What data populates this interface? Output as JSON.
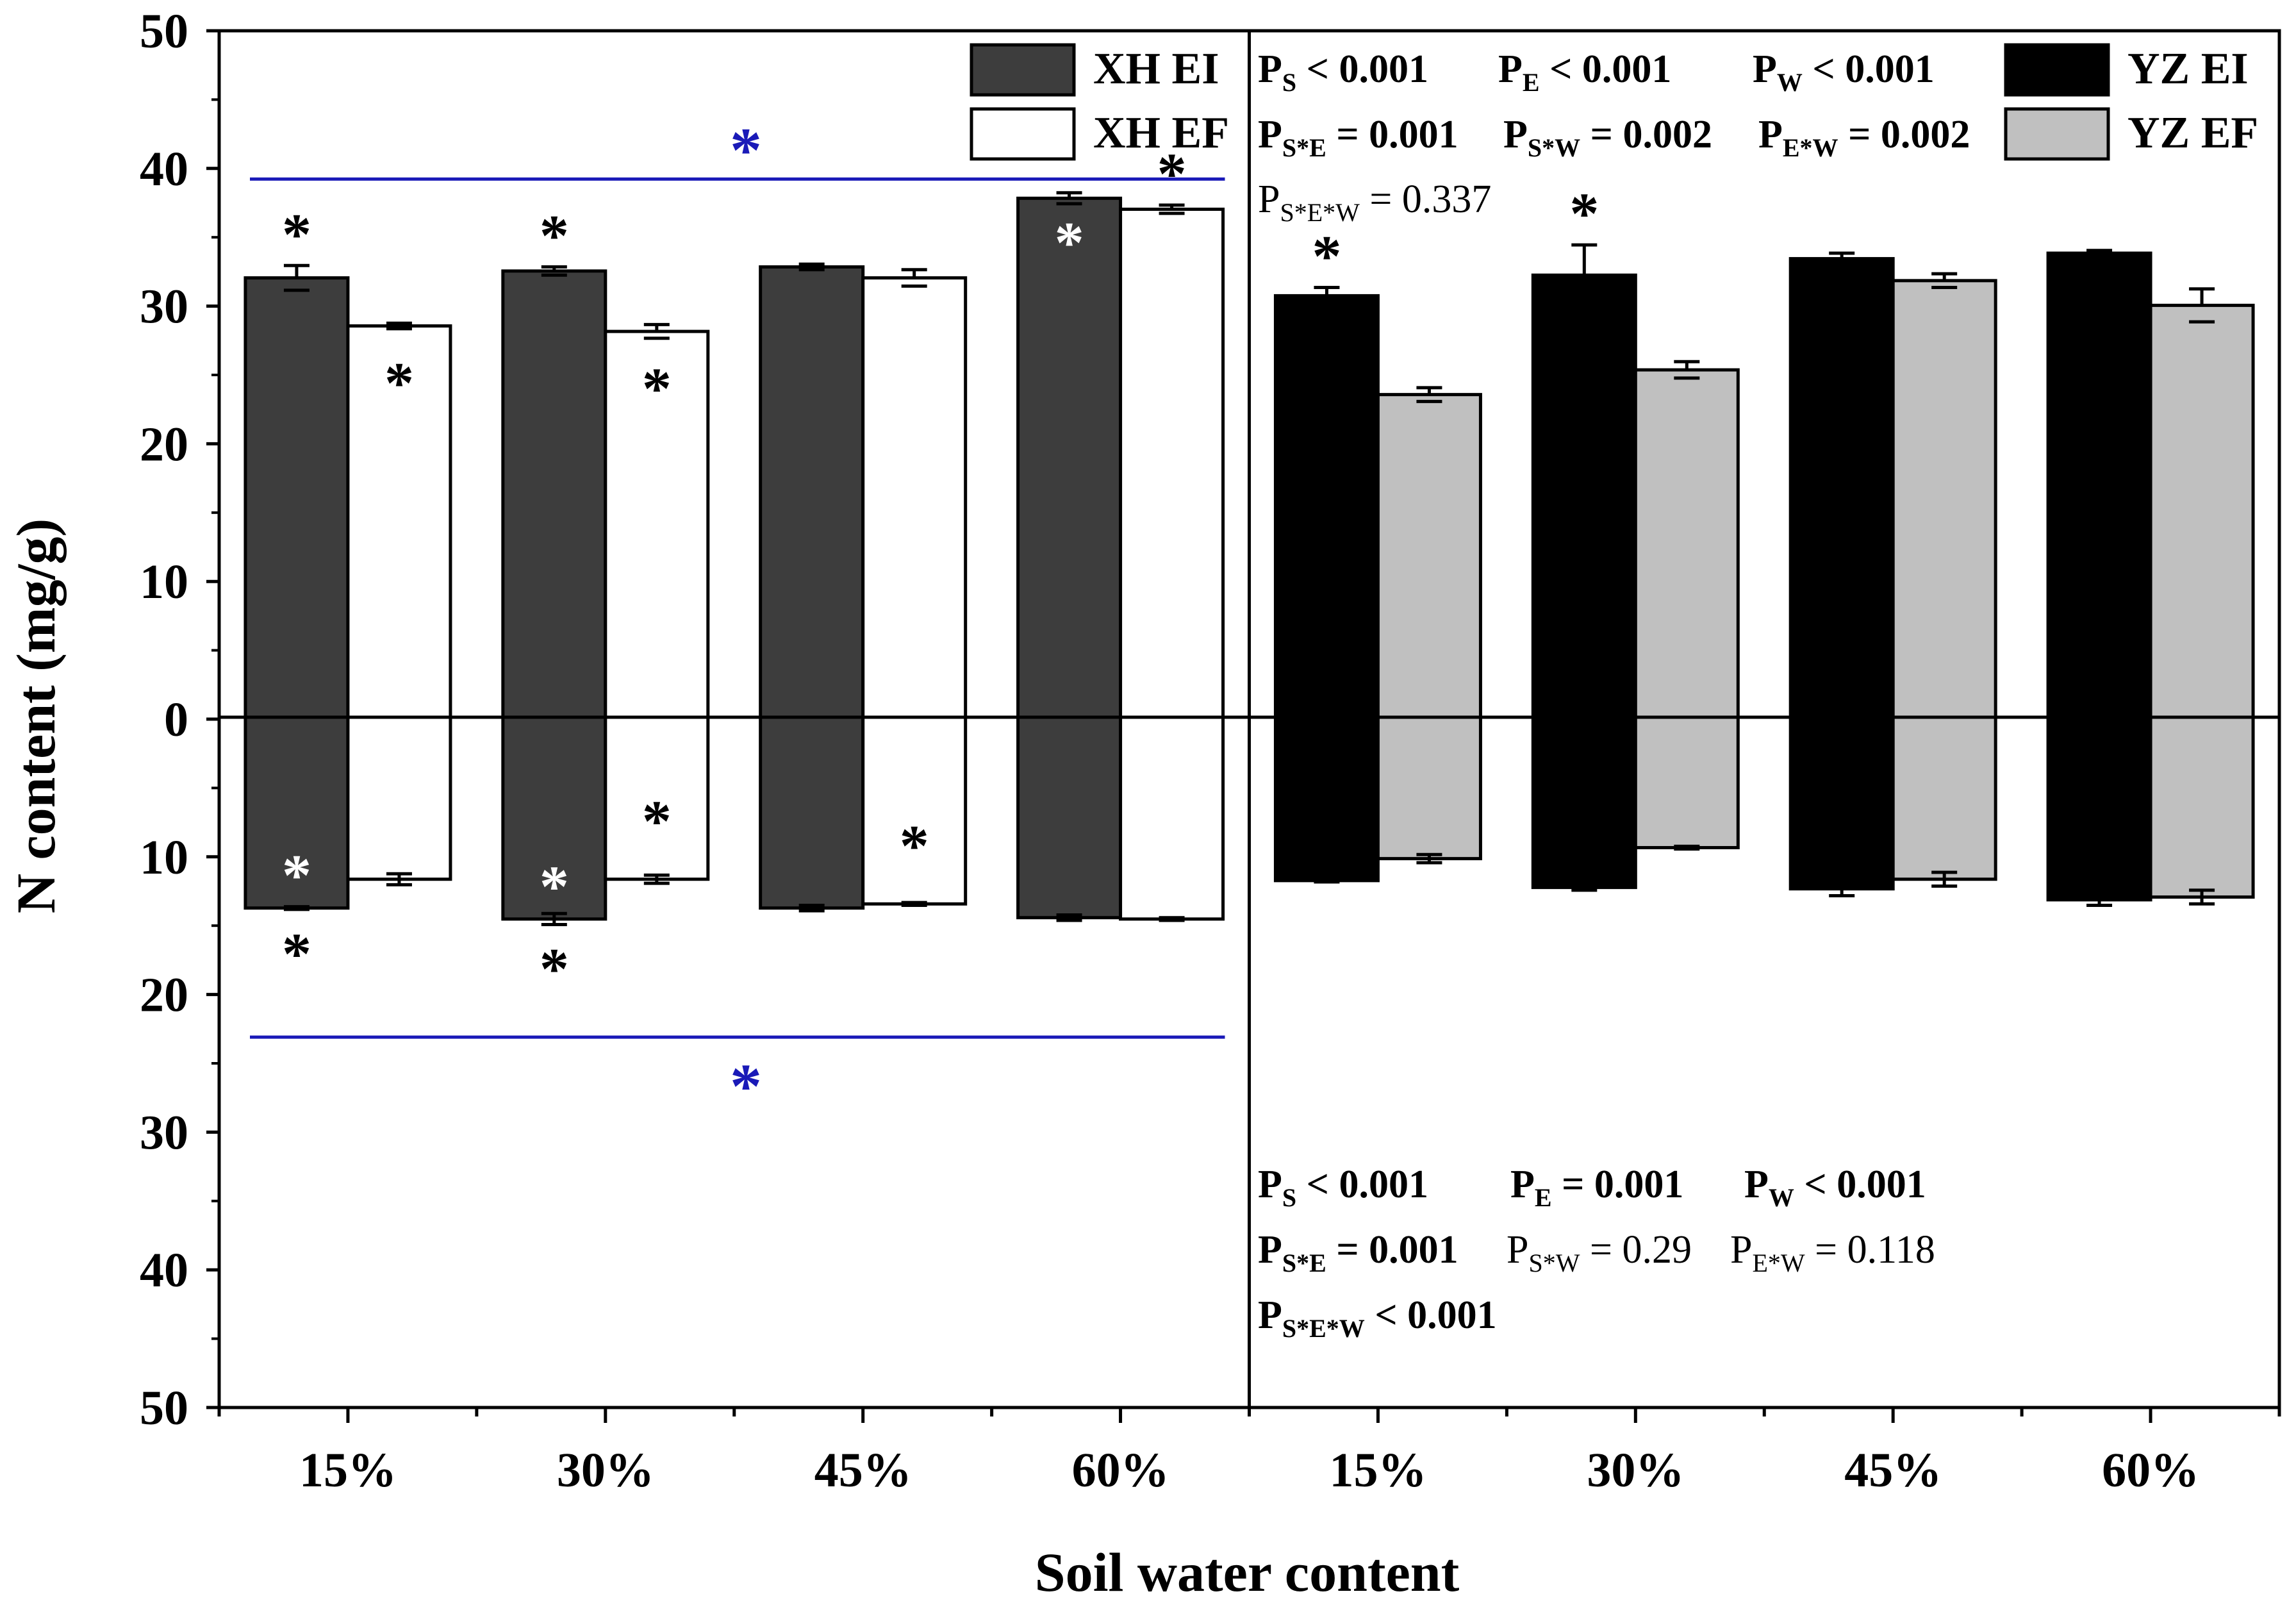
{
  "chart_data": {
    "type": "bar",
    "xlabel": "Soil water content",
    "ylabel": "N content (mg/g)",
    "ylim_top": [
      0,
      50
    ],
    "ylim_bottom": [
      0,
      50
    ],
    "yticks": [
      "50",
      "40",
      "30",
      "20",
      "10",
      "0",
      "10",
      "20",
      "30",
      "40",
      "50"
    ],
    "panels": [
      {
        "name": "XH",
        "categories": [
          "15%",
          "30%",
          "45%",
          "60%"
        ],
        "series": [
          {
            "name": "XH EI",
            "color": "#3d3d3d",
            "top": [
              32.0,
              32.5,
              32.8,
              37.8
            ],
            "top_err": [
              0.9,
              0.3,
              0.2,
              0.4
            ],
            "bottom": [
              13.9,
              14.7,
              13.9,
              14.6
            ],
            "bottom_err": [
              0.1,
              0.4,
              0.2,
              0.2
            ]
          },
          {
            "name": "XH EF",
            "color": "#ffffff",
            "top": [
              28.5,
              28.1,
              32.0,
              37.0
            ],
            "top_err": [
              0.2,
              0.5,
              0.6,
              0.3
            ],
            "bottom": [
              11.8,
              11.8,
              13.6,
              14.7
            ],
            "bottom_err": [
              0.4,
              0.3,
              0.1,
              0.1
            ]
          }
        ]
      },
      {
        "name": "YZ",
        "categories": [
          "15%",
          "30%",
          "45%",
          "60%"
        ],
        "series": [
          {
            "name": "YZ EI",
            "color": "#000000",
            "top": [
              30.7,
              32.2,
              33.4,
              33.8
            ],
            "top_err": [
              0.6,
              2.2,
              0.4,
              0.2
            ],
            "bottom": [
              11.9,
              12.4,
              12.5,
              13.3
            ],
            "bottom_err": [
              0.1,
              0.2,
              0.5,
              0.4
            ]
          },
          {
            "name": "YZ EF",
            "color": "#c0c0c0",
            "top": [
              23.5,
              25.3,
              31.8,
              30.0
            ],
            "top_err": [
              0.5,
              0.6,
              0.5,
              1.2
            ],
            "bottom": [
              10.3,
              9.5,
              11.8,
              13.1
            ],
            "bottom_err": [
              0.3,
              0.1,
              0.5,
              0.5
            ]
          }
        ]
      }
    ],
    "significance_marks": [
      {
        "panel": 0,
        "group": 0,
        "series": 0,
        "side": "top",
        "label": "*",
        "color": "#000000"
      },
      {
        "panel": 0,
        "group": 0,
        "series": 1,
        "side": "top",
        "label": "*",
        "color": "#000000"
      },
      {
        "panel": 0,
        "group": 1,
        "series": 0,
        "side": "top",
        "label": "*",
        "color": "#000000"
      },
      {
        "panel": 0,
        "group": 1,
        "series": 1,
        "side": "top",
        "label": "*",
        "color": "#000000"
      },
      {
        "panel": 0,
        "group": 3,
        "series": 0,
        "side": "top",
        "label": "*",
        "color": "#ffffff"
      },
      {
        "panel": 0,
        "group": 3,
        "series": 1,
        "side": "top",
        "label": "*",
        "color": "#000000"
      },
      {
        "panel": 0,
        "group": 0,
        "series": 0,
        "side": "bottom",
        "label": "*",
        "color": "#ffffff"
      },
      {
        "panel": 0,
        "group": 0,
        "series": 0,
        "side": "bottom-below",
        "label": "*",
        "color": "#000000"
      },
      {
        "panel": 0,
        "group": 1,
        "series": 0,
        "side": "bottom",
        "label": "*",
        "color": "#ffffff"
      },
      {
        "panel": 0,
        "group": 1,
        "series": 0,
        "side": "bottom-below",
        "label": "*",
        "color": "#000000"
      },
      {
        "panel": 0,
        "group": 1,
        "series": 1,
        "side": "bottom",
        "label": "*",
        "color": "#000000"
      },
      {
        "panel": 0,
        "group": 2,
        "series": 1,
        "side": "bottom",
        "label": "*",
        "color": "#000000"
      },
      {
        "panel": 1,
        "group": 0,
        "series": 0,
        "side": "top",
        "label": "*",
        "color": "#000000"
      },
      {
        "panel": 1,
        "group": 1,
        "series": 0,
        "side": "top",
        "label": "*",
        "color": "#000000"
      }
    ],
    "panel_lines": [
      {
        "panel": 0,
        "value": 39.2,
        "side": "top",
        "label": "*",
        "color": "#1a1ab8"
      },
      {
        "panel": 0,
        "value": 23.3,
        "side": "bottom",
        "label": "*",
        "color": "#1a1ab8"
      }
    ],
    "stats_top": [
      {
        "label": "P",
        "sub": "S",
        "rest": " < 0.001",
        "bold": true
      },
      {
        "label": "P",
        "sub": "E",
        "rest": " < 0.001",
        "bold": true
      },
      {
        "label": "P",
        "sub": "W",
        "rest": " < 0.001",
        "bold": true
      },
      {
        "label": "P",
        "sub": "S*E",
        "rest": " = 0.001",
        "bold": true
      },
      {
        "label": "P",
        "sub": "S*W",
        "rest": " = 0.002",
        "bold": true
      },
      {
        "label": "P",
        "sub": "E*W",
        "rest": " = 0.002",
        "bold": true
      },
      {
        "label": "P",
        "sub": "S*E*W",
        "rest": " = 0.337",
        "bold": false
      }
    ],
    "stats_bottom": [
      {
        "label": "P",
        "sub": "S",
        "rest": " < 0.001",
        "bold": true
      },
      {
        "label": "P",
        "sub": "E",
        "rest": " = 0.001",
        "bold": true
      },
      {
        "label": "P",
        "sub": "W",
        "rest": " < 0.001",
        "bold": true
      },
      {
        "label": "P",
        "sub": "S*E",
        "rest": " = 0.001",
        "bold": true
      },
      {
        "label": "P",
        "sub": "S*W",
        "rest": " = 0.29",
        "bold": false
      },
      {
        "label": "P",
        "sub": "E*W",
        "rest": " = 0.118",
        "bold": false
      },
      {
        "label": "P",
        "sub": "S*E*W",
        "rest": " < 0.001",
        "bold": true
      }
    ]
  }
}
